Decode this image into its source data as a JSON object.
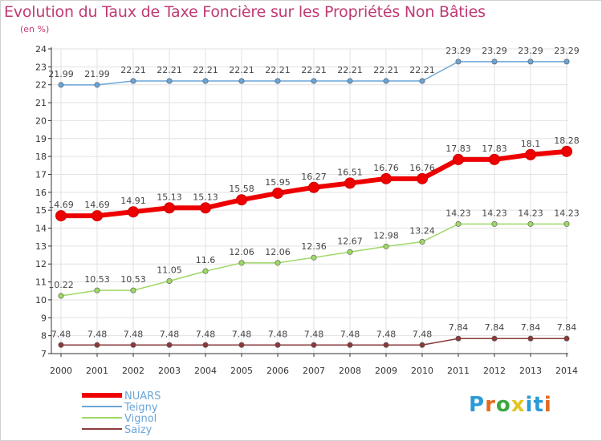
{
  "title": "Evolution du Taux de Taxe Foncière sur les Propriétés Non Bâties",
  "subtitle": "(en %)",
  "logo": {
    "letters": [
      "P",
      "r",
      "o",
      "x",
      "i",
      "t",
      "i"
    ]
  },
  "chart_data": {
    "type": "line",
    "title": "Evolution du Taux de Taxe Foncière sur les Propriétés Non Bâties",
    "ylabel": "(en %)",
    "xlabel": "",
    "x": [
      "2000",
      "2001",
      "2002",
      "2003",
      "2004",
      "2005",
      "2006",
      "2007",
      "2008",
      "2009",
      "2010",
      "2011",
      "2012",
      "2013",
      "2014"
    ],
    "ylim": [
      7,
      24
    ],
    "yticks": [
      7,
      8,
      9,
      10,
      11,
      12,
      13,
      14,
      15,
      16,
      17,
      18,
      19,
      20,
      21,
      22,
      23,
      24
    ],
    "legend_position": "bottom-left",
    "series": [
      {
        "name": "NUARS",
        "color": "#ee0000",
        "width": 6,
        "values": [
          14.69,
          14.69,
          14.91,
          15.13,
          15.13,
          15.58,
          15.95,
          16.27,
          16.51,
          16.76,
          16.76,
          17.83,
          17.83,
          18.1,
          18.28
        ],
        "labels": [
          "14.69",
          "14.69",
          "14.91",
          "15.13",
          "15.13",
          "15.58",
          "15.95",
          "16.27",
          "16.51",
          "16.76",
          "16.76",
          "17.83",
          "17.83",
          "18.1",
          "18.28"
        ]
      },
      {
        "name": "Teigny",
        "color": "#6aa5d8",
        "width": 1.5,
        "values": [
          21.99,
          21.99,
          22.21,
          22.21,
          22.21,
          22.21,
          22.21,
          22.21,
          22.21,
          22.21,
          22.21,
          23.29,
          23.29,
          23.29,
          23.29
        ],
        "labels": [
          "21.99",
          "21.99",
          "22.21",
          "22.21",
          "22.21",
          "22.21",
          "22.21",
          "22.21",
          "22.21",
          "22.21",
          "22.21",
          "23.29",
          "23.29",
          "23.29",
          "23.29"
        ]
      },
      {
        "name": "Vignol",
        "color": "#9fd866",
        "width": 1.5,
        "values": [
          10.22,
          10.53,
          10.53,
          11.05,
          11.6,
          12.06,
          12.06,
          12.36,
          12.67,
          12.98,
          13.24,
          14.23,
          14.23,
          14.23,
          14.23
        ],
        "labels": [
          "10.22",
          "10.53",
          "10.53",
          "11.05",
          "11.6",
          "12.06",
          "12.06",
          "12.36",
          "12.67",
          "12.98",
          "13.24",
          "14.23",
          "14.23",
          "14.23",
          "14.23"
        ]
      },
      {
        "name": "Saizy",
        "color": "#8b3a3a",
        "width": 1.5,
        "values": [
          7.48,
          7.48,
          7.48,
          7.48,
          7.48,
          7.48,
          7.48,
          7.48,
          7.48,
          7.48,
          7.48,
          7.84,
          7.84,
          7.84,
          7.84
        ],
        "labels": [
          "7.48",
          "7.48",
          "7.48",
          "7.48",
          "7.48",
          "7.48",
          "7.48",
          "7.48",
          "7.48",
          "7.48",
          "7.48",
          "7.84",
          "7.84",
          "7.84",
          "7.84"
        ]
      }
    ]
  }
}
